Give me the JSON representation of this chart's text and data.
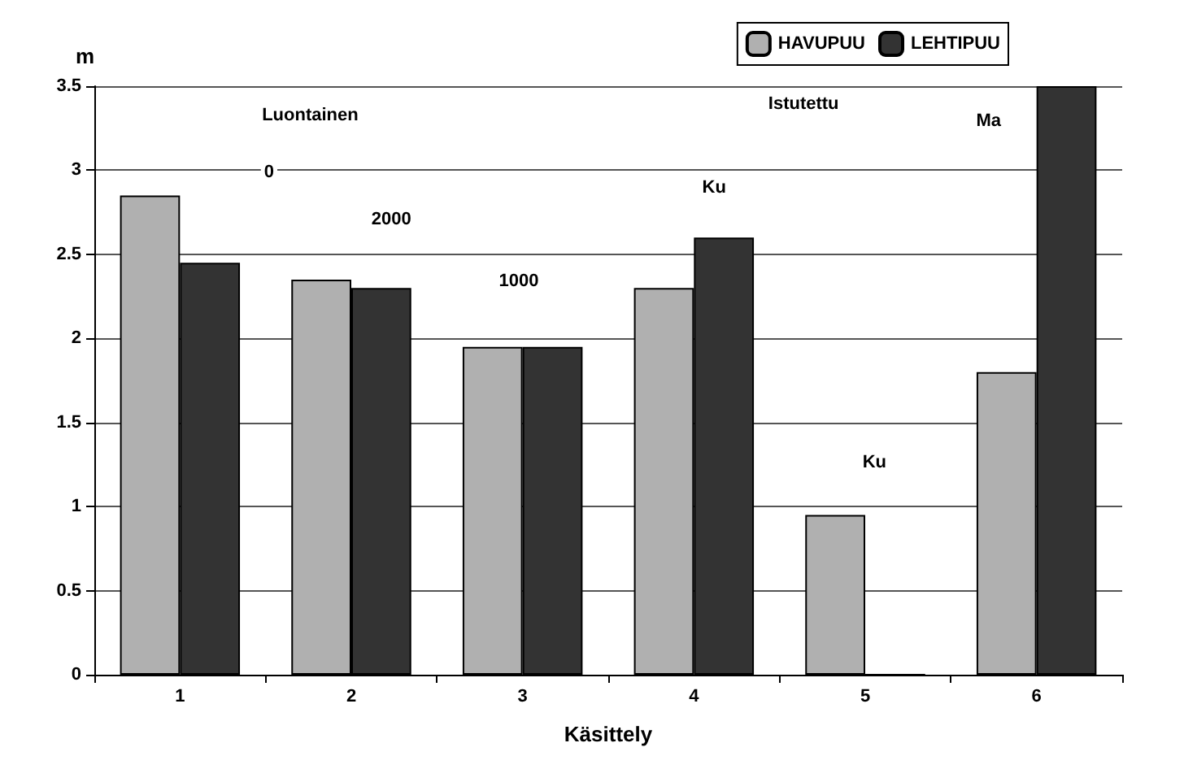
{
  "chart_data": {
    "type": "bar",
    "xlabel": "Käsittely",
    "ylabel": "m",
    "categories": [
      "1",
      "2",
      "3",
      "4",
      "5",
      "6"
    ],
    "series": [
      {
        "name": "HAVUPUU",
        "color": "#b0b0b0",
        "values": [
          2.85,
          2.35,
          1.95,
          2.3,
          0.95,
          1.8
        ]
      },
      {
        "name": "LEHTIPUU",
        "color": "#333333",
        "values": [
          2.45,
          2.3,
          1.95,
          2.6,
          0,
          3.5
        ]
      }
    ],
    "ylim": [
      0,
      3.5
    ],
    "yticks": [
      0,
      0.5,
      1,
      1.5,
      2,
      2.5,
      3,
      3.5
    ],
    "grid": "y",
    "legend": "top right",
    "annotations": [
      "Luontainen",
      "Istutettu",
      "0",
      "2000",
      "1000",
      "Ku",
      "Ku",
      "Ma"
    ]
  }
}
